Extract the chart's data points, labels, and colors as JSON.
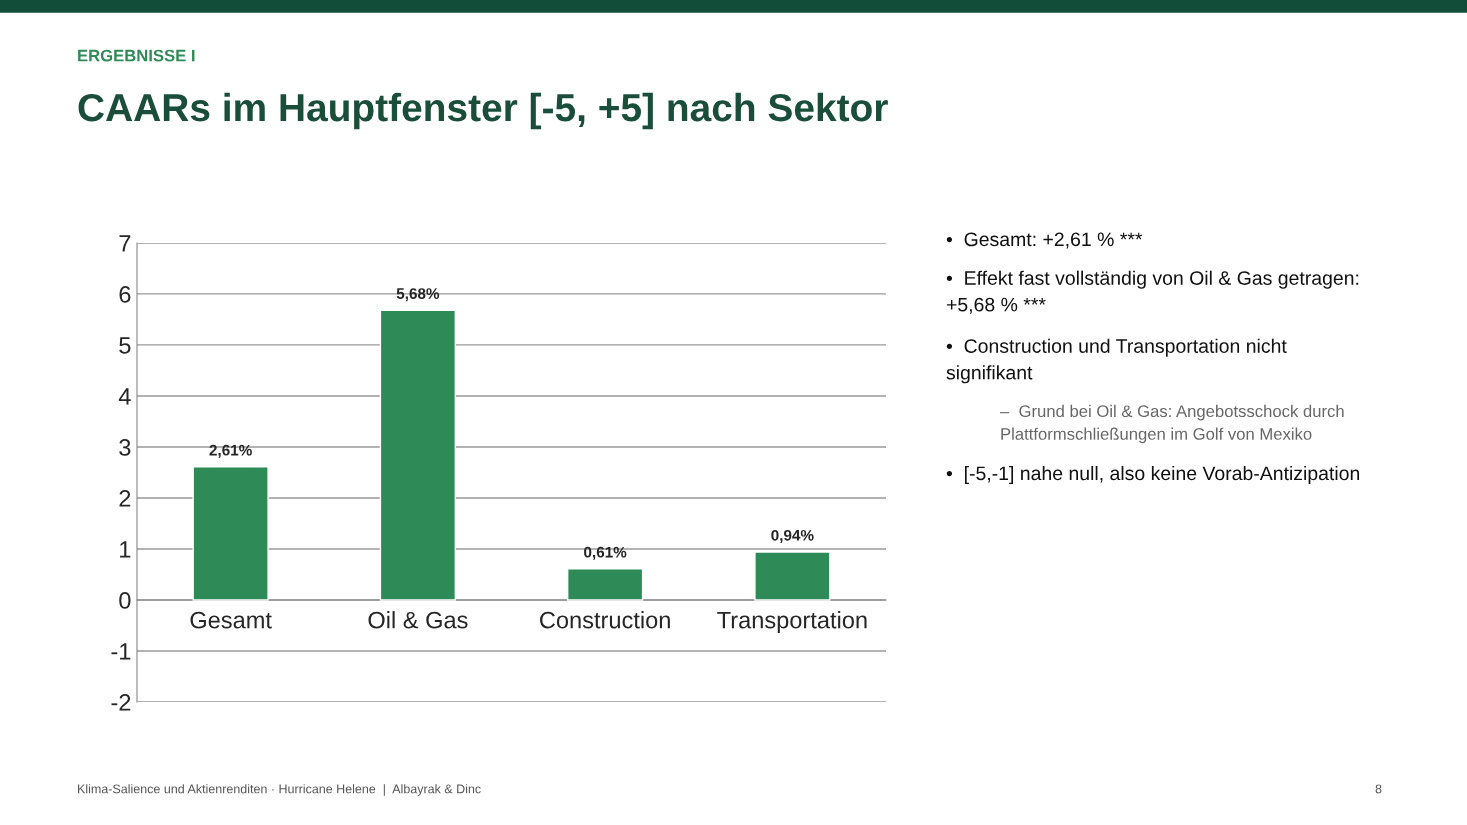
{
  "chart_data": {
    "type": "bar",
    "title": "CAARs im Hauptfenster [-5, +5] nach Sektor",
    "subtitle": "ERGEBNISSE I",
    "categories": [
      "Gesamt",
      "Oil & Gas",
      "Construction",
      "Transportation"
    ],
    "values": [
      2.61,
      5.68,
      0.61,
      0.94
    ],
    "value_labels": [
      "2,61%",
      "5,68%",
      "0,61%",
      "0,94%"
    ],
    "color": "#2e8b57",
    "ylim": [
      -2,
      7
    ],
    "yticks": [
      -2,
      -1,
      0,
      1,
      2,
      3,
      4,
      5,
      6,
      7
    ],
    "grid": "y",
    "legend": false,
    "annotations": [
      "•  Gesamt: +2,61 % ***",
      "•  Effekt fast vollständig von Oil & Gas getragen:\n+5,68 % ***",
      "•  Construction und Transportation nicht\nsignifikant",
      "–  Grund bei Oil & Gas: Angebotsschock durch\nPlattformschließungen im Golf von Mexiko",
      "•  [-5,-1] nahe null, also keine Vorab-Antizipation",
      "Klima-Salience und Aktienrenditen · Hurricane Helene  |  Albayrak & Dinc",
      "8"
    ]
  }
}
